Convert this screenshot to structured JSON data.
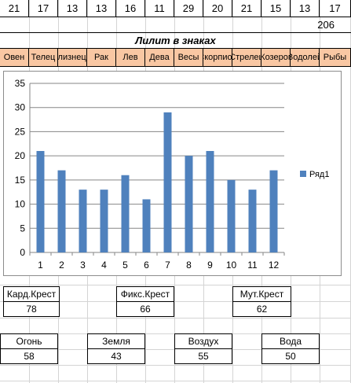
{
  "top_numbers": [
    "21",
    "17",
    "13",
    "13",
    "16",
    "11",
    "29",
    "20",
    "21",
    "15",
    "13",
    "17"
  ],
  "total": "206",
  "title": "Лилит в знаках",
  "signs": [
    "Овен",
    "Телец",
    "Близнецы",
    "Рак",
    "Лев",
    "Дева",
    "Весы",
    "Скорпион",
    "Стрелец",
    "Козерог",
    "Водолей",
    "Рыбы"
  ],
  "crosses": [
    {
      "label": "Кард.Крест",
      "value": "78"
    },
    {
      "label": "Фикс.Крест",
      "value": "66"
    },
    {
      "label": "Мут.Крест",
      "value": "62"
    }
  ],
  "elements": [
    {
      "label": "Огонь",
      "value": "58"
    },
    {
      "label": "Земля",
      "value": "43"
    },
    {
      "label": "Воздух",
      "value": "55"
    },
    {
      "label": "Вода",
      "value": "50"
    }
  ],
  "colors": {
    "bar": "#4f81bd",
    "sign_fill": "#f9c7a3",
    "gridline": "#868686"
  },
  "chart_data": {
    "type": "bar",
    "categories": [
      "1",
      "2",
      "3",
      "4",
      "5",
      "6",
      "7",
      "8",
      "9",
      "10",
      "11",
      "12"
    ],
    "series": [
      {
        "name": "Ряд1",
        "values": [
          21,
          17,
          13,
          13,
          16,
          11,
          29,
          20,
          21,
          15,
          13,
          17
        ]
      }
    ],
    "ylim": [
      0,
      35
    ],
    "yticks": [
      "0",
      "5",
      "10",
      "15",
      "20",
      "25",
      "30",
      "35"
    ],
    "grid": true,
    "legend": "right"
  }
}
